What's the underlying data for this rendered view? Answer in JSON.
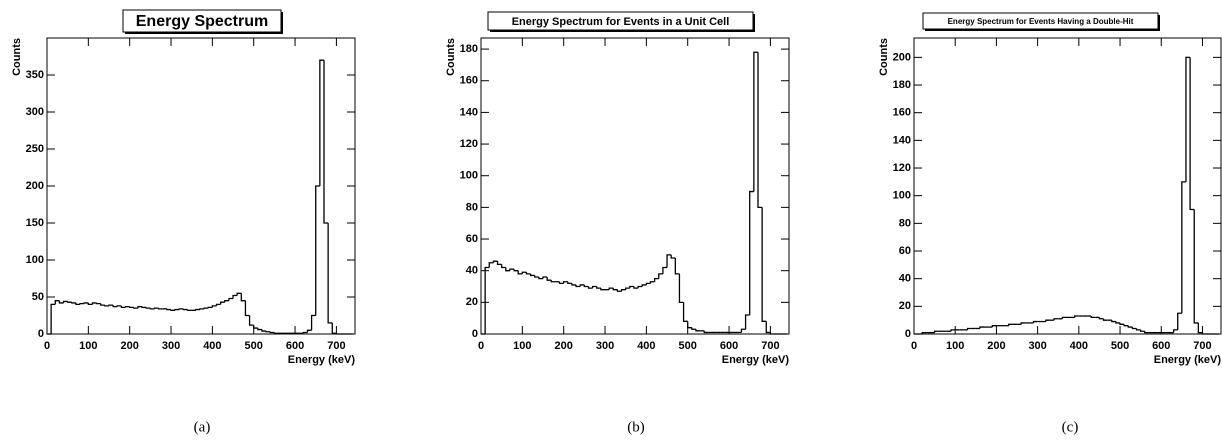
{
  "chart_data": [
    {
      "type": "histogram",
      "title": "Energy Spectrum",
      "xlabel": "Energy (keV)",
      "ylabel": "Counts",
      "caption": "(a)",
      "color": "#000000",
      "bins": [
        0,
        10,
        20,
        30,
        40,
        50,
        60,
        70,
        80,
        90,
        100,
        110,
        120,
        130,
        140,
        150,
        160,
        170,
        180,
        190,
        200,
        210,
        220,
        230,
        240,
        250,
        260,
        270,
        280,
        290,
        300,
        310,
        320,
        330,
        340,
        350,
        360,
        370,
        380,
        390,
        400,
        410,
        420,
        430,
        440,
        450,
        460,
        470,
        480,
        490,
        500,
        510,
        520,
        530,
        540,
        550,
        560,
        570,
        580,
        590,
        600,
        610,
        620,
        630,
        640,
        650,
        660,
        670,
        680,
        690,
        700,
        710,
        720,
        730,
        740
      ],
      "values": [
        0,
        40,
        45,
        42,
        44,
        43,
        42,
        40,
        41,
        42,
        40,
        42,
        41,
        39,
        38,
        39,
        37,
        38,
        36,
        37,
        36,
        35,
        37,
        36,
        35,
        34,
        35,
        34,
        34,
        33,
        32,
        33,
        34,
        33,
        32,
        32,
        33,
        34,
        35,
        36,
        38,
        40,
        43,
        45,
        48,
        52,
        55,
        45,
        25,
        12,
        8,
        6,
        4,
        3,
        2,
        1,
        1,
        1,
        1,
        1,
        1,
        1,
        2,
        5,
        25,
        200,
        370,
        150,
        15,
        1,
        0,
        0,
        0,
        0
      ],
      "xlim": [
        0,
        745
      ],
      "ylim": [
        0,
        400
      ],
      "xticks": [
        0,
        100,
        200,
        300,
        400,
        500,
        600,
        700
      ],
      "yticks": [
        0,
        50,
        100,
        150,
        200,
        250,
        300,
        350
      ]
    },
    {
      "type": "histogram",
      "title": "Energy Spectrum for Events in a Unit Cell",
      "xlabel": "Energy (keV)",
      "ylabel": "Counts",
      "caption": "(b)",
      "color": "#000000",
      "bins": [
        0,
        10,
        20,
        30,
        40,
        50,
        60,
        70,
        80,
        90,
        100,
        110,
        120,
        130,
        140,
        150,
        160,
        170,
        180,
        190,
        200,
        210,
        220,
        230,
        240,
        250,
        260,
        270,
        280,
        290,
        300,
        310,
        320,
        330,
        340,
        350,
        360,
        370,
        380,
        390,
        400,
        410,
        420,
        430,
        440,
        450,
        460,
        470,
        480,
        490,
        500,
        510,
        520,
        530,
        540,
        550,
        560,
        570,
        580,
        590,
        600,
        610,
        620,
        630,
        640,
        650,
        660,
        670,
        680,
        690,
        700,
        710,
        720,
        730,
        740
      ],
      "values": [
        0,
        42,
        45,
        46,
        44,
        42,
        40,
        41,
        40,
        38,
        39,
        38,
        37,
        36,
        35,
        36,
        34,
        33,
        33,
        32,
        33,
        32,
        31,
        30,
        31,
        30,
        29,
        30,
        29,
        28,
        28,
        29,
        28,
        27,
        28,
        29,
        30,
        29,
        30,
        31,
        32,
        33,
        35,
        38,
        42,
        50,
        48,
        38,
        20,
        8,
        4,
        3,
        2,
        2,
        1,
        1,
        1,
        1,
        1,
        1,
        1,
        1,
        1,
        3,
        12,
        90,
        178,
        80,
        8,
        1,
        0,
        0,
        0,
        0
      ],
      "xlim": [
        0,
        745
      ],
      "ylim": [
        0,
        187
      ],
      "xticks": [
        0,
        100,
        200,
        300,
        400,
        500,
        600,
        700
      ],
      "yticks": [
        0,
        20,
        40,
        60,
        80,
        100,
        120,
        140,
        160,
        180
      ]
    },
    {
      "type": "histogram",
      "title": "Energy Spectrum for Events Having a Double-Hit",
      "xlabel": "Energy (keV)",
      "ylabel": "Counts",
      "caption": "(c)",
      "color": "#000000",
      "bins": [
        0,
        10,
        20,
        30,
        40,
        50,
        60,
        70,
        80,
        90,
        100,
        110,
        120,
        130,
        140,
        150,
        160,
        170,
        180,
        190,
        200,
        210,
        220,
        230,
        240,
        250,
        260,
        270,
        280,
        290,
        300,
        310,
        320,
        330,
        340,
        350,
        360,
        370,
        380,
        390,
        400,
        410,
        420,
        430,
        440,
        450,
        460,
        470,
        480,
        490,
        500,
        510,
        520,
        530,
        540,
        550,
        560,
        570,
        580,
        590,
        600,
        610,
        620,
        630,
        640,
        650,
        660,
        670,
        680,
        690,
        700,
        710,
        720,
        730,
        740
      ],
      "values": [
        0,
        0,
        1,
        1,
        1,
        2,
        2,
        2,
        2,
        3,
        3,
        3,
        3,
        4,
        4,
        4,
        5,
        5,
        5,
        6,
        6,
        6,
        6,
        7,
        7,
        7,
        8,
        8,
        8,
        9,
        9,
        9,
        10,
        10,
        11,
        11,
        12,
        12,
        12,
        13,
        13,
        13,
        13,
        12,
        12,
        11,
        10,
        10,
        9,
        8,
        7,
        6,
        5,
        4,
        3,
        2,
        1,
        1,
        1,
        1,
        1,
        1,
        1,
        3,
        15,
        110,
        200,
        90,
        8,
        1,
        0,
        0,
        0,
        0
      ],
      "xlim": [
        0,
        745
      ],
      "ylim": [
        0,
        214
      ],
      "xticks": [
        0,
        100,
        200,
        300,
        400,
        500,
        600,
        700
      ],
      "yticks": [
        0,
        20,
        40,
        60,
        80,
        100,
        120,
        140,
        160,
        180,
        200
      ]
    }
  ]
}
